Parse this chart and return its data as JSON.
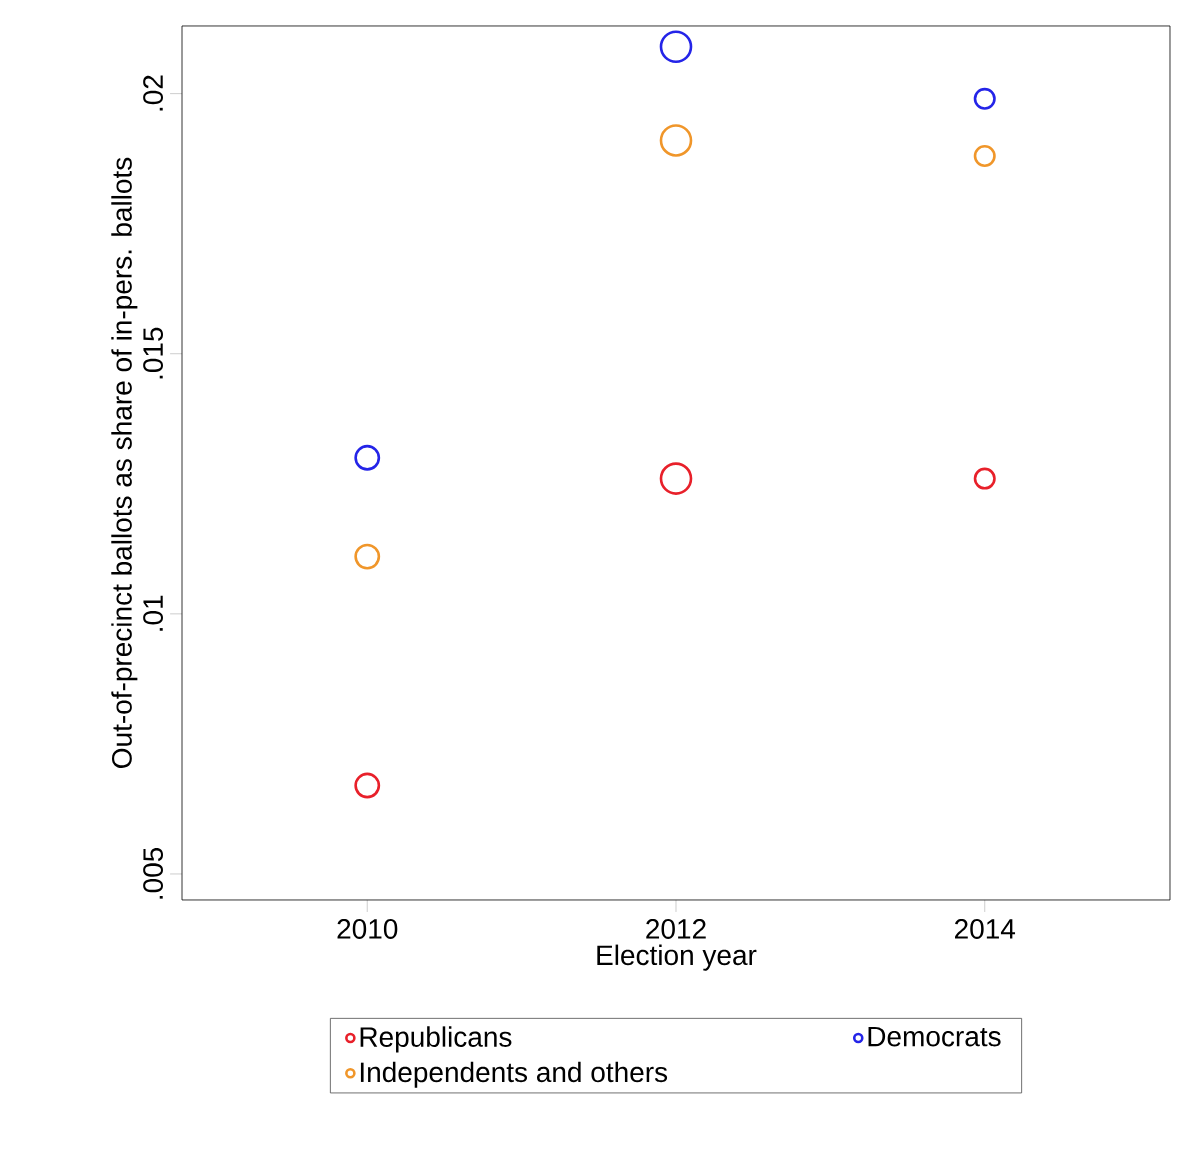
{
  "chart_data": {
    "type": "bubble",
    "xlabel": "Election year",
    "ylabel": "Out-of-precinct ballots as share of in-pers. ballots",
    "x": [
      2010,
      2012,
      2014
    ],
    "series": [
      {
        "name": "Republicans",
        "color": "#e8202a",
        "values": [
          0.0067,
          0.0126,
          0.0126
        ],
        "sizes": [
          0.6,
          1,
          0.42
        ]
      },
      {
        "name": "Democrats",
        "color": "#2424e8",
        "values": [
          0.013,
          0.0209,
          0.0199
        ],
        "sizes": [
          0.6,
          1,
          0.42
        ]
      },
      {
        "name": "Independents and others",
        "color": "#f0962a",
        "values": [
          0.0111,
          0.0191,
          0.0188
        ],
        "sizes": [
          0.6,
          1,
          0.42
        ]
      }
    ],
    "xlim": [
      2008.8,
      2015.2
    ],
    "ylim": [
      0.0045,
      0.0213
    ],
    "xticks": [
      2010,
      2012,
      2014
    ],
    "yticks": [
      {
        "value": 0.005,
        "label": ".005"
      },
      {
        "value": 0.01,
        "label": ".01"
      },
      {
        "value": 0.015,
        "label": ".015"
      },
      {
        "value": 0.02,
        "label": ".02"
      }
    ],
    "marker": "circle",
    "grid": false,
    "legend": "bottom"
  }
}
